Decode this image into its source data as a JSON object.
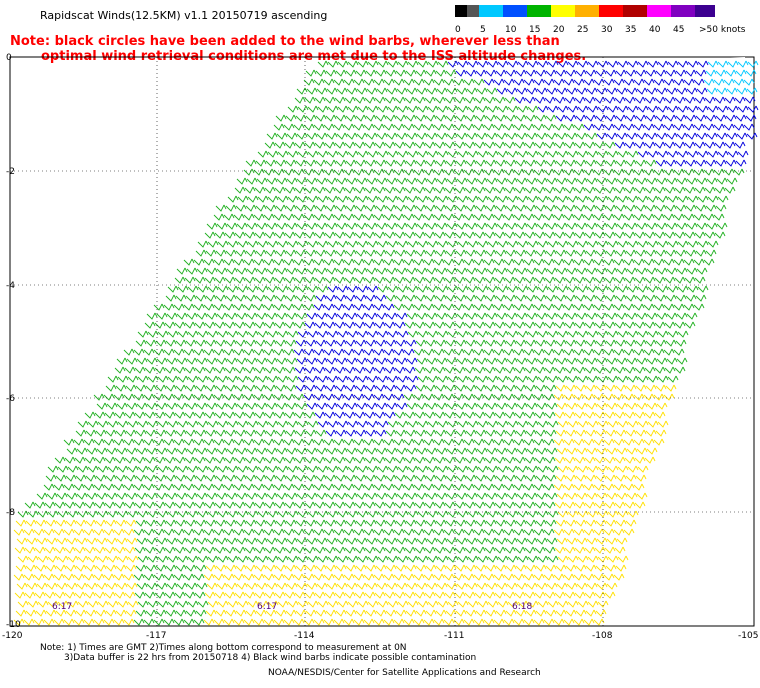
{
  "title": "Rapidscat Winds(12.5KM) v1.1 20150719 ascending",
  "note_line1": "Note: black circles have been added to the wind barbs, wherever less than",
  "note_line2": "optimal wind retrieval conditions are met due to the ISS altitude changes.",
  "legend": {
    "labels": [
      "0",
      "5",
      "10",
      "15",
      "20",
      "25",
      "30",
      "35",
      "40",
      "45",
      ">50 knots"
    ],
    "colors": [
      "#000000",
      "#555555",
      "#00c8ff",
      "#0050ff",
      "#00b400",
      "#ffff00",
      "#ffb000",
      "#ff0000",
      "#b00000",
      "#ff00ff",
      "#8000c0",
      "#3c0090"
    ]
  },
  "map": {
    "lon_labels": [
      "-120",
      "-117",
      "-114",
      "-111",
      "-108",
      "-105"
    ],
    "lat_labels": [
      "0",
      "-2",
      "-4",
      "-6",
      "-8",
      "-10"
    ],
    "time_labels": [
      "6:17",
      "6:17",
      "6:18"
    ]
  },
  "footer_line1": "Note: 1) Times are GMT 2)Times along bottom correspond to measurement at 0N",
  "footer_line2": "3)Data buffer is 22 hrs from 20150718 4) Black wind barbs indicate possible contamination",
  "credit": "NOAA/NESDIS/Center for Satellite Applications and Research"
}
